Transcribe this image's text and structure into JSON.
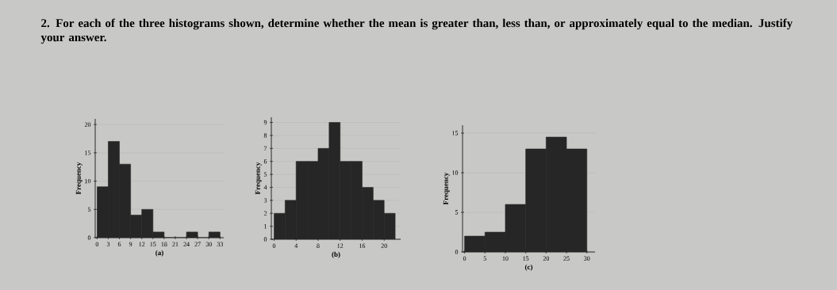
{
  "chart_data": [
    {
      "type": "histogram",
      "title": "2. For each of the three histograms shown, determine whether the mean is greater than, less than, or approximately equal to the median. Justify your answer.",
      "xlabel": "(a)",
      "ylabel": "Frequency",
      "color": "#262626",
      "grid": "y",
      "bins": [
        0,
        3,
        6,
        9,
        12,
        15,
        18,
        21,
        24,
        27,
        30,
        33
      ],
      "values": [
        9,
        17,
        13,
        4,
        5,
        1,
        0,
        0,
        1,
        0,
        1
      ],
      "xlim": [
        -0.5,
        34
      ],
      "ylim": [
        0,
        21
      ],
      "xticks": [
        0,
        3,
        6,
        9,
        12,
        15,
        18,
        21,
        24,
        27,
        30,
        33
      ],
      "yticks": [
        0,
        5,
        10,
        15,
        20
      ]
    },
    {
      "type": "histogram",
      "xlabel": "(b)",
      "ylabel": "Frequency",
      "color": "#262626",
      "grid": "y",
      "bins": [
        0,
        2,
        4,
        6,
        8,
        10,
        12,
        14,
        16,
        18,
        20,
        22
      ],
      "values": [
        2,
        3,
        6,
        6,
        7,
        9,
        6,
        6,
        4,
        3,
        2
      ],
      "xlim": [
        -0.5,
        23
      ],
      "ylim": [
        0,
        9.4
      ],
      "xticks": [
        0,
        4,
        8,
        12,
        16,
        20
      ],
      "yticks": [
        0,
        1,
        2,
        3,
        4,
        5,
        6,
        7,
        8,
        9
      ]
    },
    {
      "type": "histogram",
      "xlabel": "(c)",
      "ylabel": "Frequency",
      "color": "#262626",
      "grid": "y",
      "bins": [
        0,
        5,
        10,
        15,
        20,
        25,
        30
      ],
      "values": [
        2,
        2.5,
        6,
        13,
        14.5,
        13
      ],
      "xlim": [
        -0.5,
        32
      ],
      "ylim": [
        0,
        16
      ],
      "xticks": [
        0,
        5,
        10,
        15,
        20,
        25,
        30
      ],
      "yticks": [
        0,
        5,
        10,
        15
      ]
    }
  ]
}
